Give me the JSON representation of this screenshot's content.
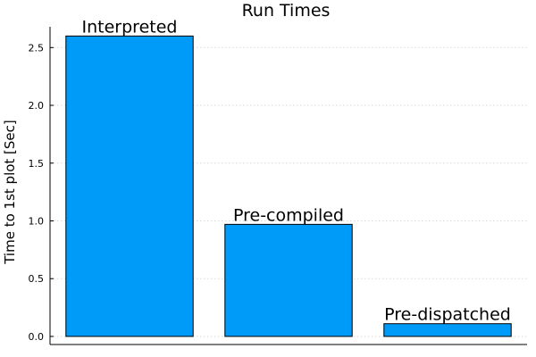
{
  "chart_data": {
    "type": "bar",
    "title": "Run Times",
    "xlabel": "",
    "ylabel": "Time to 1st plot [Sec]",
    "categories": [
      "Interpreted",
      "Pre-compiled",
      "Pre-dispatched"
    ],
    "values": [
      2.6,
      0.97,
      0.11
    ],
    "bar_labels": [
      "Interpreted",
      "Pre-compiled",
      "Pre-dispatched"
    ],
    "ylim": [
      -0.07,
      2.68
    ],
    "yticks": [
      0.0,
      0.5,
      1.0,
      1.5,
      2.0,
      2.5
    ],
    "ytick_labels": [
      "0.0",
      "0.5",
      "1.0",
      "1.5",
      "2.0",
      "2.5"
    ],
    "grid": true,
    "legend": "none",
    "bar_color": "#009af9",
    "bar_edge_color": "#000000"
  }
}
